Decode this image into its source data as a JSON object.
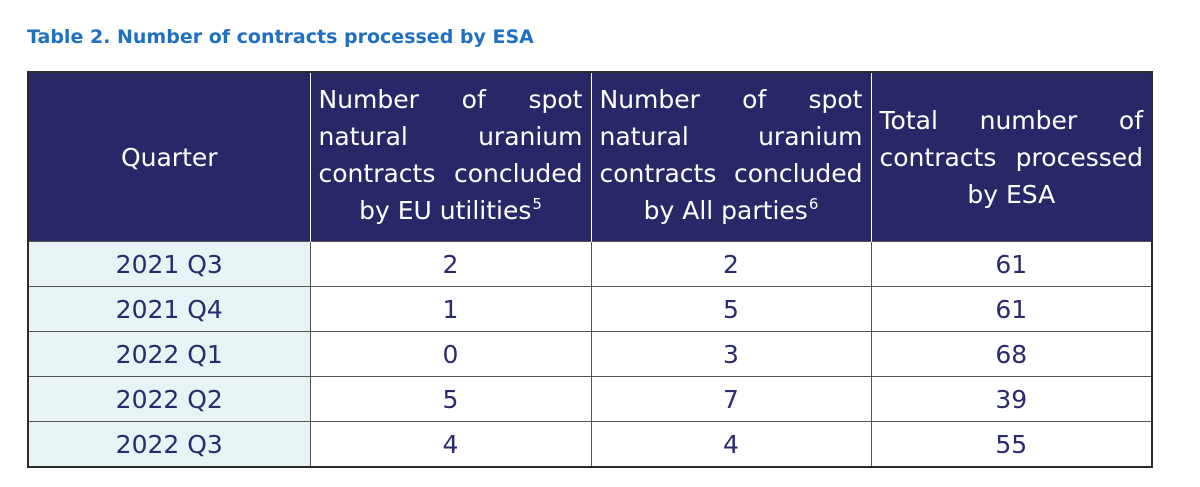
{
  "caption": "Table 2. Number of contracts processed by ESA",
  "table": {
    "headers": {
      "quarter": "Quarter",
      "eu_utilities": "Number of spot natural uranium contracts concluded by EU utilities",
      "eu_utilities_footnote": "5",
      "all_parties": "Number of spot natural uranium contracts concluded by All parties",
      "all_parties_footnote": "6",
      "total": "Total number of contracts processed by ESA"
    },
    "rows": [
      {
        "quarter": "2021 Q3",
        "eu_utilities": "2",
        "all_parties": "2",
        "total": "61"
      },
      {
        "quarter": "2021 Q4",
        "eu_utilities": "1",
        "all_parties": "5",
        "total": "61"
      },
      {
        "quarter": "2022 Q1",
        "eu_utilities": "0",
        "all_parties": "3",
        "total": "68"
      },
      {
        "quarter": "2022 Q2",
        "eu_utilities": "5",
        "all_parties": "7",
        "total": "39"
      },
      {
        "quarter": "2022 Q3",
        "eu_utilities": "4",
        "all_parties": "4",
        "total": "55"
      }
    ]
  },
  "colors": {
    "caption": "#1f6fc5",
    "header_bg": "#282869",
    "header_text": "#ffffff",
    "first_col_bg": "#e7f3f4",
    "cell_text": "#2a2a6e"
  }
}
